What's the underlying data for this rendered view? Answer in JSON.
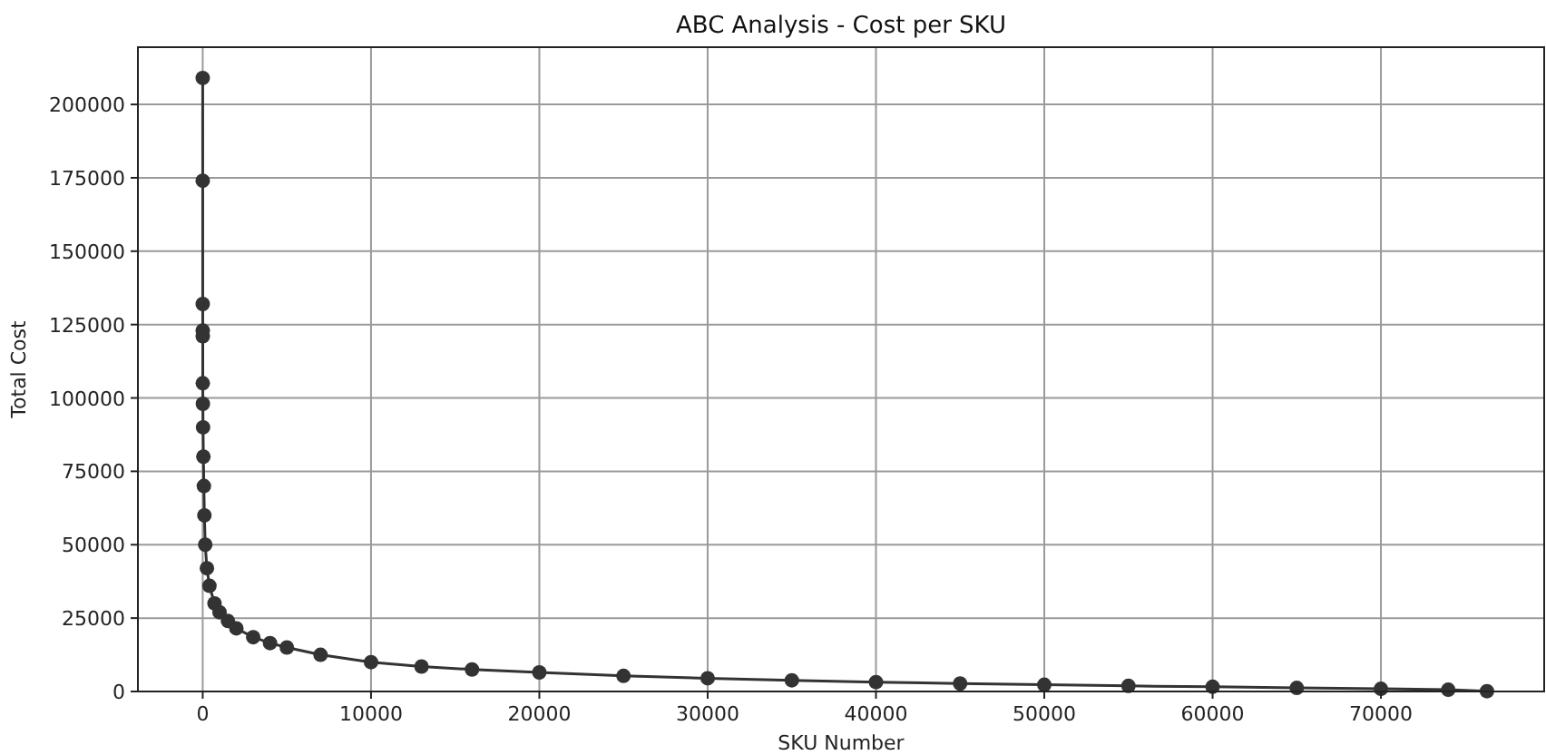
{
  "chart_data": {
    "type": "line",
    "title": "ABC Analysis - Cost per SKU",
    "xlabel": "SKU Number",
    "ylabel": "Total Cost",
    "x": [
      0,
      1,
      2,
      3,
      4,
      5,
      10,
      20,
      40,
      70,
      100,
      150,
      250,
      400,
      700,
      1000,
      1500,
      2000,
      3000,
      4000,
      5000,
      7000,
      10000,
      13000,
      16000,
      20000,
      25000,
      30000,
      35000,
      40000,
      45000,
      50000,
      55000,
      60000,
      65000,
      70000,
      74000,
      76300
    ],
    "series": [
      {
        "color": "#333333",
        "values": [
          209000,
          174000,
          132000,
          123000,
          121000,
          105000,
          98000,
          90000,
          80000,
          70000,
          60000,
          50000,
          42000,
          36000,
          30000,
          27000,
          24000,
          21500,
          18500,
          16500,
          15000,
          12500,
          10000,
          8500,
          7500,
          6500,
          5300,
          4500,
          3800,
          3200,
          2700,
          2300,
          1900,
          1600,
          1200,
          900,
          600,
          100
        ]
      }
    ],
    "xlim": [
      -3850,
      79700
    ],
    "ylim": [
      0,
      219500
    ],
    "xticks": [
      0,
      10000,
      20000,
      30000,
      40000,
      50000,
      60000,
      70000
    ],
    "yticks": [
      0,
      25000,
      50000,
      75000,
      100000,
      125000,
      150000,
      175000,
      200000
    ],
    "grid": true,
    "marker": "circle",
    "line_style": "solid"
  }
}
